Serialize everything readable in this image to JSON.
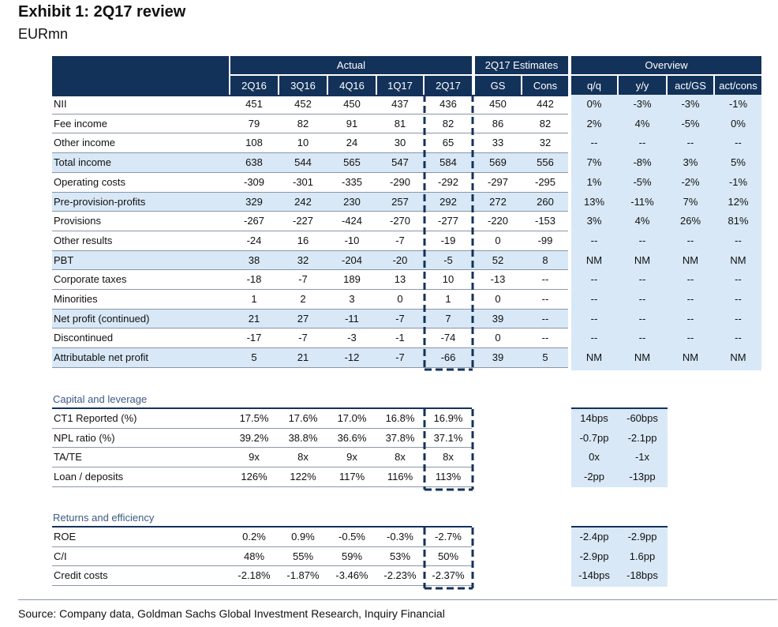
{
  "title": "Exhibit 1: 2Q17 review",
  "subtitle": "EURmn",
  "groups": {
    "actual": "Actual",
    "estimates": "2Q17 Estimates",
    "overview": "Overview"
  },
  "columns": [
    "2Q16",
    "3Q16",
    "4Q16",
    "1Q17",
    "2Q17",
    "GS",
    "Cons",
    "q/q",
    "y/y",
    "act/GS",
    "act/cons"
  ],
  "main_rows": [
    {
      "label": "NII",
      "cells": [
        "451",
        "452",
        "450",
        "437",
        "436",
        "450",
        "442",
        "0%",
        "-3%",
        "-3%",
        "-1%"
      ]
    },
    {
      "label": "Fee income",
      "cells": [
        "79",
        "82",
        "91",
        "81",
        "82",
        "86",
        "82",
        "2%",
        "4%",
        "-5%",
        "0%"
      ]
    },
    {
      "label": "Other income",
      "cells": [
        "108",
        "10",
        "24",
        "30",
        "65",
        "33",
        "32",
        "--",
        "--",
        "--",
        "--"
      ]
    },
    {
      "label": "Total income",
      "cells": [
        "638",
        "544",
        "565",
        "547",
        "584",
        "569",
        "556",
        "7%",
        "-8%",
        "3%",
        "5%"
      ]
    },
    {
      "label": "Operating costs",
      "cells": [
        "-309",
        "-301",
        "-335",
        "-290",
        "-292",
        "-297",
        "-295",
        "1%",
        "-5%",
        "-2%",
        "-1%"
      ]
    },
    {
      "label": "Pre-provision-profits",
      "cells": [
        "329",
        "242",
        "230",
        "257",
        "292",
        "272",
        "260",
        "13%",
        "-11%",
        "7%",
        "12%"
      ]
    },
    {
      "label": "Provisions",
      "cells": [
        "-267",
        "-227",
        "-424",
        "-270",
        "-277",
        "-220",
        "-153",
        "3%",
        "4%",
        "26%",
        "81%"
      ]
    },
    {
      "label": "Other results",
      "cells": [
        "-24",
        "16",
        "-10",
        "-7",
        "-19",
        "0",
        "-99",
        "--",
        "--",
        "--",
        "--"
      ]
    },
    {
      "label": "PBT",
      "cells": [
        "38",
        "32",
        "-204",
        "-20",
        "-5",
        "52",
        "8",
        "NM",
        "NM",
        "NM",
        "NM"
      ]
    },
    {
      "label": "Corporate taxes",
      "cells": [
        "-18",
        "-7",
        "189",
        "13",
        "10",
        "-13",
        "--",
        "--",
        "--",
        "--",
        "--"
      ]
    },
    {
      "label": "Minorities",
      "cells": [
        "1",
        "2",
        "3",
        "0",
        "1",
        "0",
        "--",
        "--",
        "--",
        "--",
        "--"
      ]
    },
    {
      "label": "Net profit (continued)",
      "cells": [
        "21",
        "27",
        "-11",
        "-7",
        "7",
        "39",
        "--",
        "--",
        "--",
        "--",
        "--"
      ]
    },
    {
      "label": "Discontinued",
      "cells": [
        "-17",
        "-7",
        "-3",
        "-1",
        "-74",
        "0",
        "--",
        "--",
        "--",
        "--",
        "--"
      ]
    },
    {
      "label": "Attributable net profit",
      "cells": [
        "5",
        "21",
        "-12",
        "-7",
        "-66",
        "39",
        "5",
        "NM",
        "NM",
        "NM",
        "NM"
      ]
    }
  ],
  "capital": {
    "title": "Capital and leverage",
    "rows": [
      {
        "label": "CT1 Reported (%)",
        "cells": [
          "17.5%",
          "17.6%",
          "17.0%",
          "16.8%",
          "16.9%"
        ],
        "overview": [
          "14bps",
          "-60bps"
        ]
      },
      {
        "label": "NPL ratio (%)",
        "cells": [
          "39.2%",
          "38.8%",
          "36.6%",
          "37.8%",
          "37.1%"
        ],
        "overview": [
          "-0.7pp",
          "-2.1pp"
        ]
      },
      {
        "label": "TA/TE",
        "cells": [
          "9x",
          "8x",
          "9x",
          "8x",
          "8x"
        ],
        "overview": [
          "0x",
          "-1x"
        ]
      },
      {
        "label": "Loan / deposits",
        "cells": [
          "126%",
          "122%",
          "117%",
          "116%",
          "113%"
        ],
        "overview": [
          "-2pp",
          "-13pp"
        ]
      }
    ]
  },
  "returns": {
    "title": "Returns and efficiency",
    "rows": [
      {
        "label": "ROE",
        "cells": [
          "0.2%",
          "0.9%",
          "-0.5%",
          "-0.3%",
          "-2.7%"
        ],
        "overview": [
          "-2.4pp",
          "-2.9pp"
        ]
      },
      {
        "label": "C/I",
        "cells": [
          "48%",
          "55%",
          "59%",
          "53%",
          "50%"
        ],
        "overview": [
          "-2.9pp",
          "1.6pp"
        ]
      },
      {
        "label": "Credit costs",
        "cells": [
          "-2.18%",
          "-1.87%",
          "-3.46%",
          "-2.23%",
          "-2.37%"
        ],
        "overview": [
          "-14bps",
          "-18bps"
        ]
      }
    ]
  },
  "source": "Source: Company data, Goldman Sachs Global Investment Research, Inquiry Financial",
  "colors": {
    "header": "#13325a",
    "band": "#d8e8f6"
  }
}
